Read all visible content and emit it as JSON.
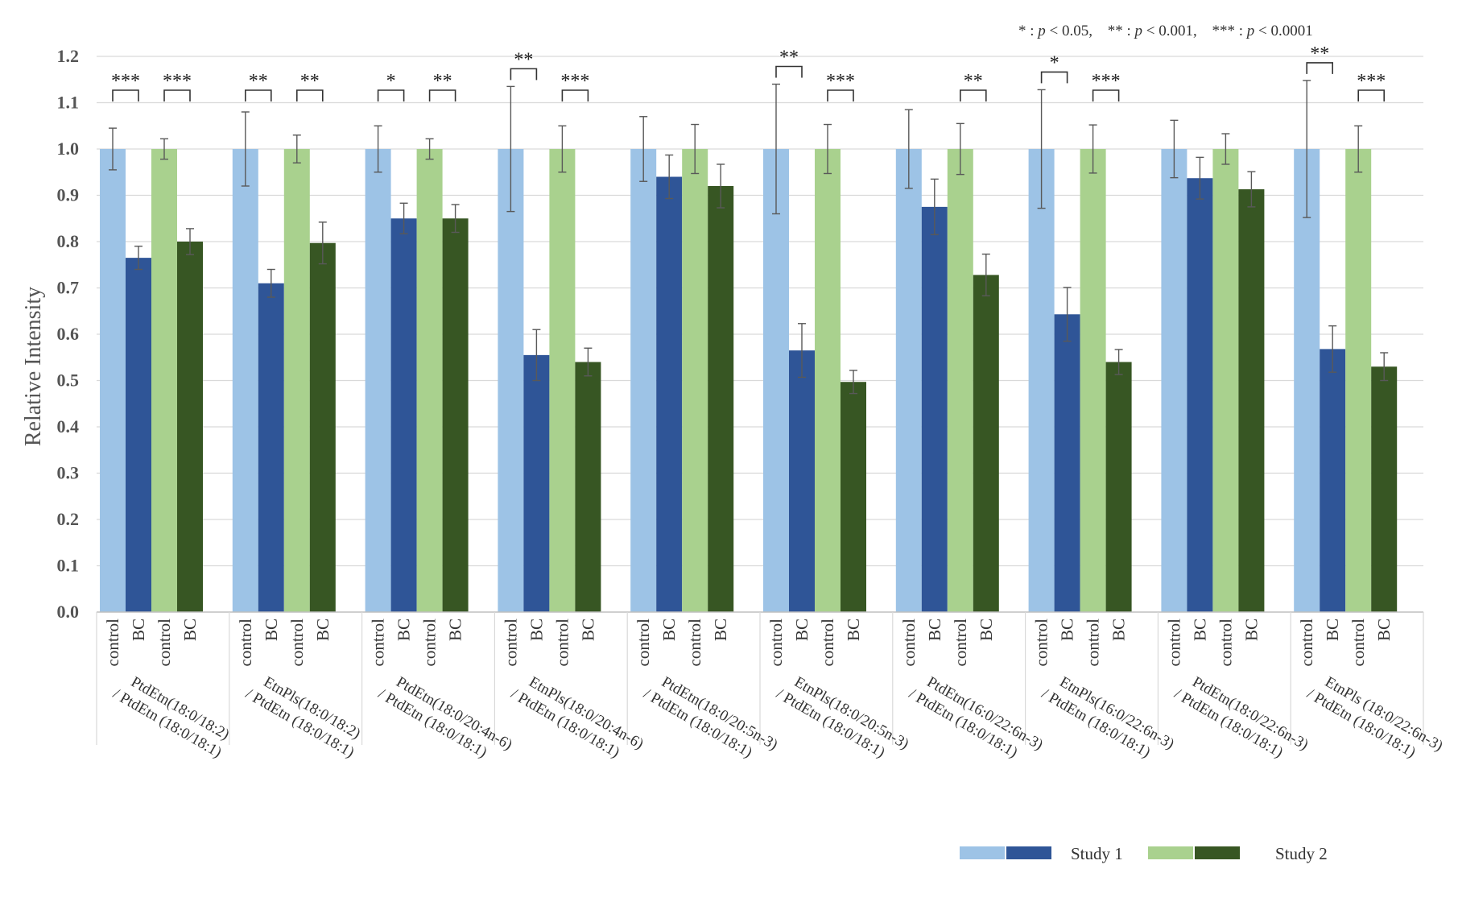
{
  "chart_data": {
    "type": "bar",
    "title": "",
    "xlabel": "",
    "ylabel": "Relative Intensity",
    "ylim": [
      0,
      1.2
    ],
    "yticks": [
      "0.0",
      "0.1",
      "0.2",
      "0.3",
      "0.4",
      "0.5",
      "0.6",
      "0.7",
      "0.8",
      "0.9",
      "1.0",
      "1.1",
      "1.2"
    ],
    "bar_labels": [
      "control",
      "BC",
      "control",
      "BC"
    ],
    "legend": [
      "Study 1",
      "Study 2"
    ],
    "pvalue_note": {
      "a_sym": "* :",
      "a_p": "p",
      "a_val": "< 0.05,",
      "b_sym": "** :",
      "b_p": "p",
      "b_val": "< 0.001,",
      "c_sym": "*** :",
      "c_p": "p",
      "c_val": "< 0.0001"
    },
    "colors": {
      "s1_control": "#9dc3e6",
      "s1_bc": "#2f5597",
      "s2_control": "#a9d18e",
      "s2_bc": "#375623"
    },
    "groups": [
      {
        "label1": "PtdEtn(18:0/18:2)",
        "label2": "/ PtdEtn (18:0/18:1)",
        "values": [
          1.0,
          0.765,
          1.0,
          0.8
        ],
        "errors": [
          0.045,
          0.025,
          0.022,
          0.028
        ],
        "sig": [
          "***",
          "***"
        ]
      },
      {
        "label1": "EtnPls(18:0/18:2)",
        "label2": "/ PtdEtn (18:0/18:1)",
        "values": [
          1.0,
          0.71,
          1.0,
          0.797
        ],
        "errors": [
          0.08,
          0.03,
          0.03,
          0.045
        ],
        "sig": [
          "**",
          "**"
        ]
      },
      {
        "label1": "PtdEtn(18:0/20:4n-6)",
        "label2": "/ PtdEtn (18:0/18:1)",
        "values": [
          1.0,
          0.85,
          1.0,
          0.85
        ],
        "errors": [
          0.05,
          0.033,
          0.022,
          0.03
        ],
        "sig": [
          "*",
          "**"
        ]
      },
      {
        "label1": "EtnPls(18:0/20:4n-6)",
        "label2": "/ PtdEtn (18:0/18:1)",
        "values": [
          1.0,
          0.555,
          1.0,
          0.54
        ],
        "errors": [
          0.135,
          0.055,
          0.05,
          0.03
        ],
        "sig": [
          "**",
          "***"
        ]
      },
      {
        "label1": "PtdEtn(18:0/20:5n-3)",
        "label2": "/ PtdEtn (18:0/18:1)",
        "values": [
          1.0,
          0.94,
          1.0,
          0.92
        ],
        "errors": [
          0.07,
          0.047,
          0.053,
          0.047
        ],
        "sig": [
          "",
          ""
        ]
      },
      {
        "label1": "EtnPls(18:0/20:5n-3)",
        "label2": "/ PtdEtn (18:0/18:1)",
        "values": [
          1.0,
          0.565,
          1.0,
          0.497
        ],
        "errors": [
          0.14,
          0.058,
          0.053,
          0.025
        ],
        "sig": [
          "**",
          "***"
        ]
      },
      {
        "label1": "PtdEtn(16:0/22:6n-3)",
        "label2": "/ PtdEtn (18:0/18:1)",
        "values": [
          1.0,
          0.875,
          1.0,
          0.728
        ],
        "errors": [
          0.085,
          0.06,
          0.055,
          0.045
        ],
        "sig": [
          "",
          "**"
        ]
      },
      {
        "label1": "EtnPls(16:0/22:6n-3)",
        "label2": "/ PtdEtn (18:0/18:1)",
        "values": [
          1.0,
          0.643,
          1.0,
          0.54
        ],
        "errors": [
          0.128,
          0.058,
          0.052,
          0.027
        ],
        "sig": [
          "*",
          "***"
        ]
      },
      {
        "label1": "PtdEtn(18:0/22:6n-3)",
        "label2": "/ PtdEtn (18:0/18:1)",
        "values": [
          1.0,
          0.937,
          1.0,
          0.913
        ],
        "errors": [
          0.062,
          0.045,
          0.033,
          0.038
        ],
        "sig": [
          "",
          ""
        ]
      },
      {
        "label1": "EtnPls (18:0/22:6n-3)",
        "label2": "/ PtdEtn (18:0/18:1)",
        "values": [
          1.0,
          0.568,
          1.0,
          0.53
        ],
        "errors": [
          0.148,
          0.05,
          0.05,
          0.03
        ],
        "sig": [
          "**",
          "***"
        ]
      }
    ]
  }
}
